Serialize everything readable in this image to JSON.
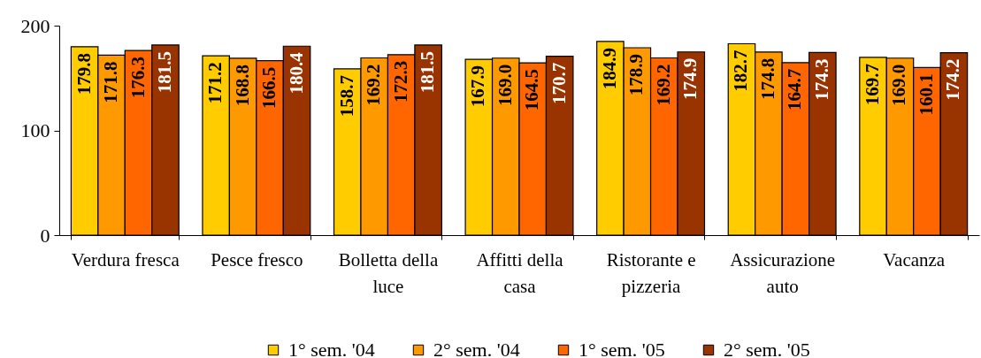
{
  "chart_data": {
    "type": "bar",
    "categories": [
      "Verdura fresca",
      "Pesce fresco",
      "Bolletta della luce",
      "Affitti della casa",
      "Ristorante e pizzeria",
      "Assicurazione auto",
      "Vacanza"
    ],
    "series": [
      {
        "name": "1° sem. '04",
        "color": "#ffcc00",
        "values": [
          179.8,
          171.2,
          158.7,
          167.9,
          184.9,
          182.7,
          169.7
        ],
        "value_labels": [
          "179.8",
          "171.2",
          "158.7",
          "167.9",
          "184.9",
          "182.7",
          "169.7"
        ]
      },
      {
        "name": "2° sem. '04",
        "color": "#ff9900",
        "values": [
          171.8,
          168.8,
          169.2,
          169.0,
          178.9,
          174.8,
          169.0
        ],
        "value_labels": [
          "171.8",
          "168.8",
          "169.2",
          "169.0",
          "178.9",
          "174.8",
          "169.0"
        ]
      },
      {
        "name": "1° sem. '05",
        "color": "#ff6600",
        "values": [
          176.3,
          166.5,
          172.3,
          164.5,
          169.2,
          164.7,
          160.1
        ],
        "value_labels": [
          "176.3",
          "166.5",
          "172.3",
          "164.5",
          "169.2",
          "164.7",
          "160.1"
        ]
      },
      {
        "name": "2° sem. '05",
        "color": "#993300",
        "values": [
          181.5,
          180.4,
          181.5,
          170.7,
          174.9,
          174.3,
          174.2
        ],
        "value_labels": [
          "181.5",
          "180.4",
          "181.5",
          "170.7",
          "174.9",
          "174.3",
          "174.2"
        ]
      }
    ],
    "ylim": [
      0,
      200
    ],
    "yticks": [
      0,
      100,
      200
    ],
    "legend": "bottom"
  }
}
